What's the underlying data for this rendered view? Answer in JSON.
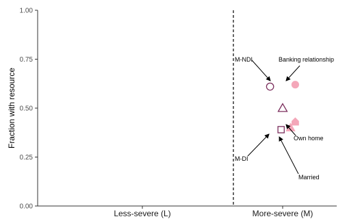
{
  "chart_data": {
    "type": "scatter",
    "ylabel": "Fraction with resource",
    "ylim": [
      0,
      1
    ],
    "yticks": [
      {
        "value": 0.0,
        "label": "0.00"
      },
      {
        "value": 0.25,
        "label": "0.25"
      },
      {
        "value": 0.5,
        "label": "0.50"
      },
      {
        "value": 0.75,
        "label": "0.75"
      },
      {
        "value": 1.0,
        "label": "1.00"
      }
    ],
    "categories": [
      "Less-severe (L)",
      "More-severe (M)"
    ],
    "divider_line": {
      "style": "dashed",
      "between_categories": true
    },
    "colors": {
      "dark": "#7b2d5c",
      "light": "#f4a7b9"
    },
    "points": [
      {
        "key": "m_ndi",
        "category": "More-severe (M)",
        "offset": -0.08,
        "y": 0.61,
        "shape": "circle",
        "fill": "none",
        "color": "#7b2d5c"
      },
      {
        "key": "banking",
        "category": "More-severe (M)",
        "offset": 0.08,
        "y": 0.62,
        "shape": "circle",
        "fill": "solid",
        "color": "#f4a7b9"
      },
      {
        "key": "triangle",
        "category": "More-severe (M)",
        "offset": 0.0,
        "y": 0.5,
        "shape": "triangle",
        "fill": "none",
        "color": "#7b2d5c"
      },
      {
        "key": "own_home",
        "category": "More-severe (M)",
        "offset": 0.08,
        "y": 0.43,
        "shape": "house",
        "fill": "solid",
        "color": "#f4a7b9"
      },
      {
        "key": "m_di",
        "category": "More-severe (M)",
        "offset": -0.01,
        "y": 0.39,
        "shape": "square",
        "fill": "none",
        "color": "#7b2d5c"
      },
      {
        "key": "married",
        "category": "More-severe (M)",
        "offset": 0.05,
        "y": 0.4,
        "shape": "triangle",
        "fill": "solid",
        "color": "#f4a7b9"
      }
    ],
    "annotations": [
      {
        "text": "M-NDI",
        "target": "m_ndi"
      },
      {
        "text": "Banking relationship",
        "target": "banking"
      },
      {
        "text": "Own home",
        "target": "own_home"
      },
      {
        "text": "M-DI",
        "target": "m_di"
      },
      {
        "text": "Married",
        "target": "married"
      }
    ]
  }
}
